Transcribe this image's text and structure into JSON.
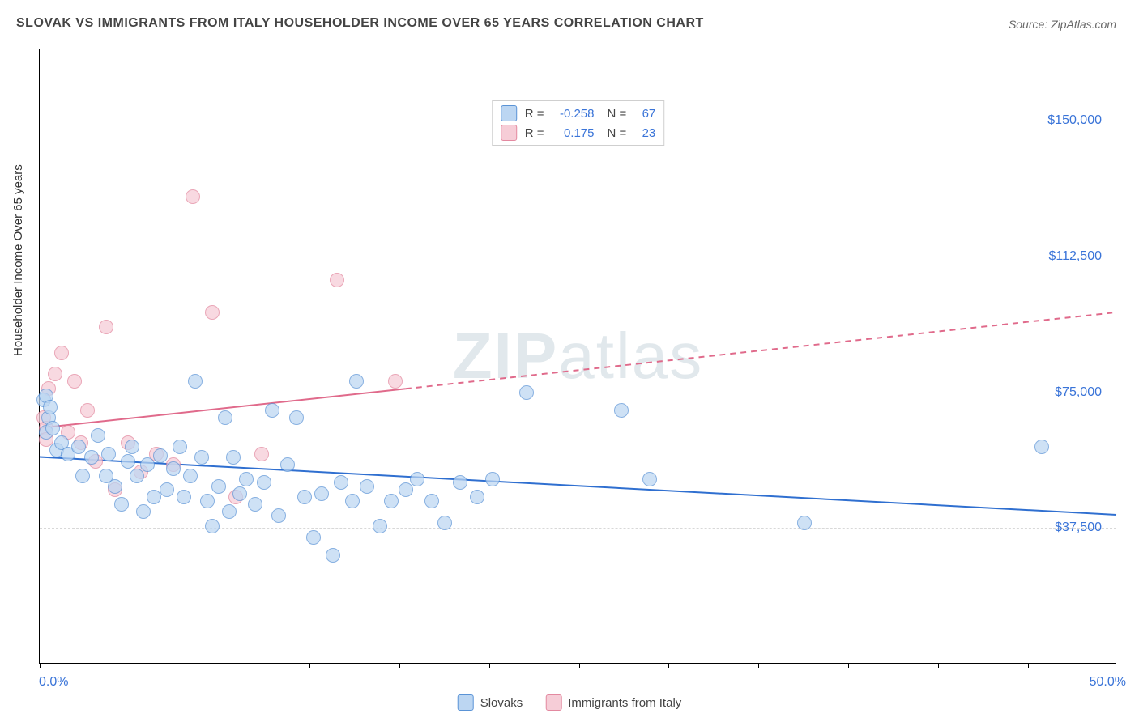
{
  "title": "SLOVAK VS IMMIGRANTS FROM ITALY HOUSEHOLDER INCOME OVER 65 YEARS CORRELATION CHART",
  "source_label": "Source: ZipAtlas.com",
  "watermark": {
    "bold": "ZIP",
    "light": "atlas"
  },
  "y_axis_label": "Householder Income Over 65 years",
  "chart": {
    "type": "scatter",
    "xlim": [
      0,
      50
    ],
    "ylim": [
      0,
      170000
    ],
    "x_unit": "%",
    "xlim_labels": [
      "0.0%",
      "50.0%"
    ],
    "xtick_step": 4.17,
    "grid_color": "#d8d8d8",
    "ylines": [
      {
        "value": 37500,
        "label": "$37,500"
      },
      {
        "value": 75000,
        "label": "$75,000"
      },
      {
        "value": 112500,
        "label": "$112,500"
      },
      {
        "value": 150000,
        "label": "$150,000"
      }
    ],
    "point_radius": 9,
    "series": [
      {
        "key": "slovaks",
        "name": "Slovaks",
        "fill": "#bcd6f2",
        "stroke": "#5a93d6",
        "fill_opacity": 0.72,
        "trend": {
          "y_at_xmin": 57000,
          "y_at_xmax": 41000,
          "color": "#2f6fd0",
          "width": 2,
          "solid_until_x": 50
        },
        "stats": {
          "R": "-0.258",
          "N": "67"
        },
        "points": [
          {
            "x": 0.2,
            "y": 73000
          },
          {
            "x": 0.3,
            "y": 74000
          },
          {
            "x": 0.3,
            "y": 64000
          },
          {
            "x": 0.4,
            "y": 68000
          },
          {
            "x": 0.5,
            "y": 71000
          },
          {
            "x": 0.6,
            "y": 65000
          },
          {
            "x": 0.8,
            "y": 59000
          },
          {
            "x": 1.0,
            "y": 61000
          },
          {
            "x": 1.3,
            "y": 58000
          },
          {
            "x": 1.8,
            "y": 60000
          },
          {
            "x": 2.0,
            "y": 52000
          },
          {
            "x": 2.4,
            "y": 57000
          },
          {
            "x": 2.7,
            "y": 63000
          },
          {
            "x": 3.1,
            "y": 52000
          },
          {
            "x": 3.2,
            "y": 58000
          },
          {
            "x": 3.5,
            "y": 49000
          },
          {
            "x": 3.8,
            "y": 44000
          },
          {
            "x": 4.1,
            "y": 56000
          },
          {
            "x": 4.3,
            "y": 60000
          },
          {
            "x": 4.5,
            "y": 52000
          },
          {
            "x": 4.8,
            "y": 42000
          },
          {
            "x": 5.0,
            "y": 55000
          },
          {
            "x": 5.3,
            "y": 46000
          },
          {
            "x": 5.6,
            "y": 57500
          },
          {
            "x": 5.9,
            "y": 48000
          },
          {
            "x": 6.2,
            "y": 54000
          },
          {
            "x": 6.5,
            "y": 60000
          },
          {
            "x": 6.7,
            "y": 46000
          },
          {
            "x": 7.0,
            "y": 52000
          },
          {
            "x": 7.2,
            "y": 78000
          },
          {
            "x": 7.5,
            "y": 57000
          },
          {
            "x": 7.8,
            "y": 45000
          },
          {
            "x": 8.0,
            "y": 38000
          },
          {
            "x": 8.3,
            "y": 49000
          },
          {
            "x": 8.6,
            "y": 68000
          },
          {
            "x": 8.8,
            "y": 42000
          },
          {
            "x": 9.0,
            "y": 57000
          },
          {
            "x": 9.3,
            "y": 47000
          },
          {
            "x": 9.6,
            "y": 51000
          },
          {
            "x": 10.0,
            "y": 44000
          },
          {
            "x": 10.4,
            "y": 50000
          },
          {
            "x": 10.8,
            "y": 70000
          },
          {
            "x": 11.1,
            "y": 41000
          },
          {
            "x": 11.5,
            "y": 55000
          },
          {
            "x": 11.9,
            "y": 68000
          },
          {
            "x": 12.3,
            "y": 46000
          },
          {
            "x": 12.7,
            "y": 35000
          },
          {
            "x": 13.1,
            "y": 47000
          },
          {
            "x": 13.6,
            "y": 30000
          },
          {
            "x": 14.0,
            "y": 50000
          },
          {
            "x": 14.5,
            "y": 45000
          },
          {
            "x": 14.7,
            "y": 78000
          },
          {
            "x": 15.2,
            "y": 49000
          },
          {
            "x": 15.8,
            "y": 38000
          },
          {
            "x": 16.3,
            "y": 45000
          },
          {
            "x": 17.0,
            "y": 48000
          },
          {
            "x": 17.5,
            "y": 51000
          },
          {
            "x": 18.2,
            "y": 45000
          },
          {
            "x": 18.8,
            "y": 39000
          },
          {
            "x": 19.5,
            "y": 50000
          },
          {
            "x": 20.3,
            "y": 46000
          },
          {
            "x": 21.0,
            "y": 51000
          },
          {
            "x": 22.6,
            "y": 75000
          },
          {
            "x": 27.0,
            "y": 70000
          },
          {
            "x": 35.5,
            "y": 39000
          },
          {
            "x": 46.5,
            "y": 60000
          },
          {
            "x": 28.3,
            "y": 51000
          }
        ]
      },
      {
        "key": "italy",
        "name": "Immigrants from Italy",
        "fill": "#f6cdd7",
        "stroke": "#e389a0",
        "fill_opacity": 0.75,
        "trend": {
          "y_at_xmin": 65000,
          "y_at_xmax": 97000,
          "color": "#e06a8b",
          "width": 2,
          "solid_until_x": 17
        },
        "stats": {
          "R": "0.175",
          "N": "23"
        },
        "points": [
          {
            "x": 0.2,
            "y": 68000
          },
          {
            "x": 0.3,
            "y": 65000
          },
          {
            "x": 0.3,
            "y": 62000
          },
          {
            "x": 0.4,
            "y": 76000
          },
          {
            "x": 0.7,
            "y": 80000
          },
          {
            "x": 1.0,
            "y": 86000
          },
          {
            "x": 1.3,
            "y": 64000
          },
          {
            "x": 1.6,
            "y": 78000
          },
          {
            "x": 1.9,
            "y": 61000
          },
          {
            "x": 2.2,
            "y": 70000
          },
          {
            "x": 2.6,
            "y": 56000
          },
          {
            "x": 3.1,
            "y": 93000
          },
          {
            "x": 3.5,
            "y": 48000
          },
          {
            "x": 4.1,
            "y": 61000
          },
          {
            "x": 4.7,
            "y": 53000
          },
          {
            "x": 5.4,
            "y": 58000
          },
          {
            "x": 6.2,
            "y": 55000
          },
          {
            "x": 7.1,
            "y": 129000
          },
          {
            "x": 8.0,
            "y": 97000
          },
          {
            "x": 9.1,
            "y": 46000
          },
          {
            "x": 10.3,
            "y": 58000
          },
          {
            "x": 13.8,
            "y": 106000
          },
          {
            "x": 16.5,
            "y": 78000
          }
        ]
      }
    ]
  },
  "legend_bottom": [
    {
      "swatch_fill": "#bcd6f2",
      "swatch_stroke": "#5a93d6",
      "label": "Slovaks"
    },
    {
      "swatch_fill": "#f6cdd7",
      "swatch_stroke": "#e389a0",
      "label": "Immigrants from Italy"
    }
  ],
  "colors": {
    "title": "#444444",
    "source": "#686868",
    "axis_text": "#3a74d8",
    "background": "#ffffff",
    "axis_line": "#000000"
  },
  "typography": {
    "title_size": 16,
    "label_size": 15,
    "tick_size": 16,
    "watermark_size": 80
  }
}
